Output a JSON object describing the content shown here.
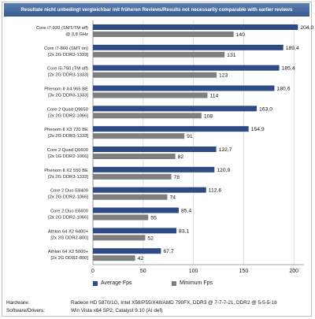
{
  "header": {
    "title": "Resultate nicht unbedingt vergleichbar mit früheren Reviews/Results not necessarily comparable with earlier reviews"
  },
  "legend": {
    "average_label": "Average Fps",
    "minimum_label": "Minimum Fps"
  },
  "footer": {
    "hardware_label": "Hardware:",
    "hardware_value": "Radeon HD 5870/1G, Intel X58/P55/X48/AMD 790FX, DDR3 @ 7-7-7-21, DDR2 @ 5-5-5-18",
    "software_label": "Software/Drivers:",
    "software_value": "Win Vista x64 SP2; Catalyst 9.10 (AI def)"
  },
  "colors": {
    "average": "#2e4b86",
    "minimum": "#7f7f7f",
    "header": "#3f5f93"
  },
  "chart_data": {
    "type": "bar",
    "orientation": "horizontal",
    "categories": [
      [
        "Core i7-920 (SMT/TM off)",
        "@ 3,8 GHz"
      ],
      [
        "Core i7-860 (SMT on)",
        "[2x 2G DDR3-1333]"
      ],
      [
        "Core i5-750 (TM off)",
        "[2x 2G DDR3-1333]"
      ],
      [
        "Phenom II X4 965 BE",
        "[3x 2G DDR3-1333]"
      ],
      [
        "Core 2 Quad Q9650",
        "[2x 2G DDR2-1066]"
      ],
      [
        "Phenom II X3 720 BE",
        "[2x 2G DDR3-1333]"
      ],
      [
        "Core 2 Quad Q6600",
        "[2x 1G DDR2-1066]"
      ],
      [
        "Phenom II X2 550 BE",
        "[2x 2G DDR3-1333]"
      ],
      [
        "Core 2 Duo E8400",
        "[2x 2G DDR2-1066]"
      ],
      [
        "Core 2 Duo E6600",
        "[2x 2G DDR2-1066]"
      ],
      [
        "Athlon 64 X2 6400+",
        "[2x 2G DDR2-800]"
      ],
      [
        "Athlon 64 X2 5000+",
        "[2x 2G DDR2-800]"
      ]
    ],
    "series": [
      {
        "name": "Average Fps",
        "values": [
          204.0,
          189.4,
          185.4,
          180.6,
          163.0,
          154.9,
          122.7,
          120.9,
          112.6,
          85.4,
          83.1,
          67.7
        ],
        "labels": [
          "204,0",
          "189,4",
          "185,4",
          "180,6",
          "163,0",
          "154,9",
          "122,7",
          "120,9",
          "112,6",
          "85,4",
          "83,1",
          "67,7"
        ]
      },
      {
        "name": "Minimum Fps",
        "values": [
          140,
          131,
          123,
          114,
          108,
          91,
          82,
          78,
          74,
          55,
          52,
          42
        ],
        "labels": [
          "140",
          "131",
          "123",
          "114",
          "108",
          "91",
          "82",
          "78",
          "74",
          "55",
          "52",
          "42"
        ]
      }
    ],
    "x_ticks": [
      "0",
      "50",
      "100",
      "150",
      "200"
    ],
    "xlim": [
      0,
      210
    ],
    "grid": true,
    "legend_position": "bottom"
  }
}
